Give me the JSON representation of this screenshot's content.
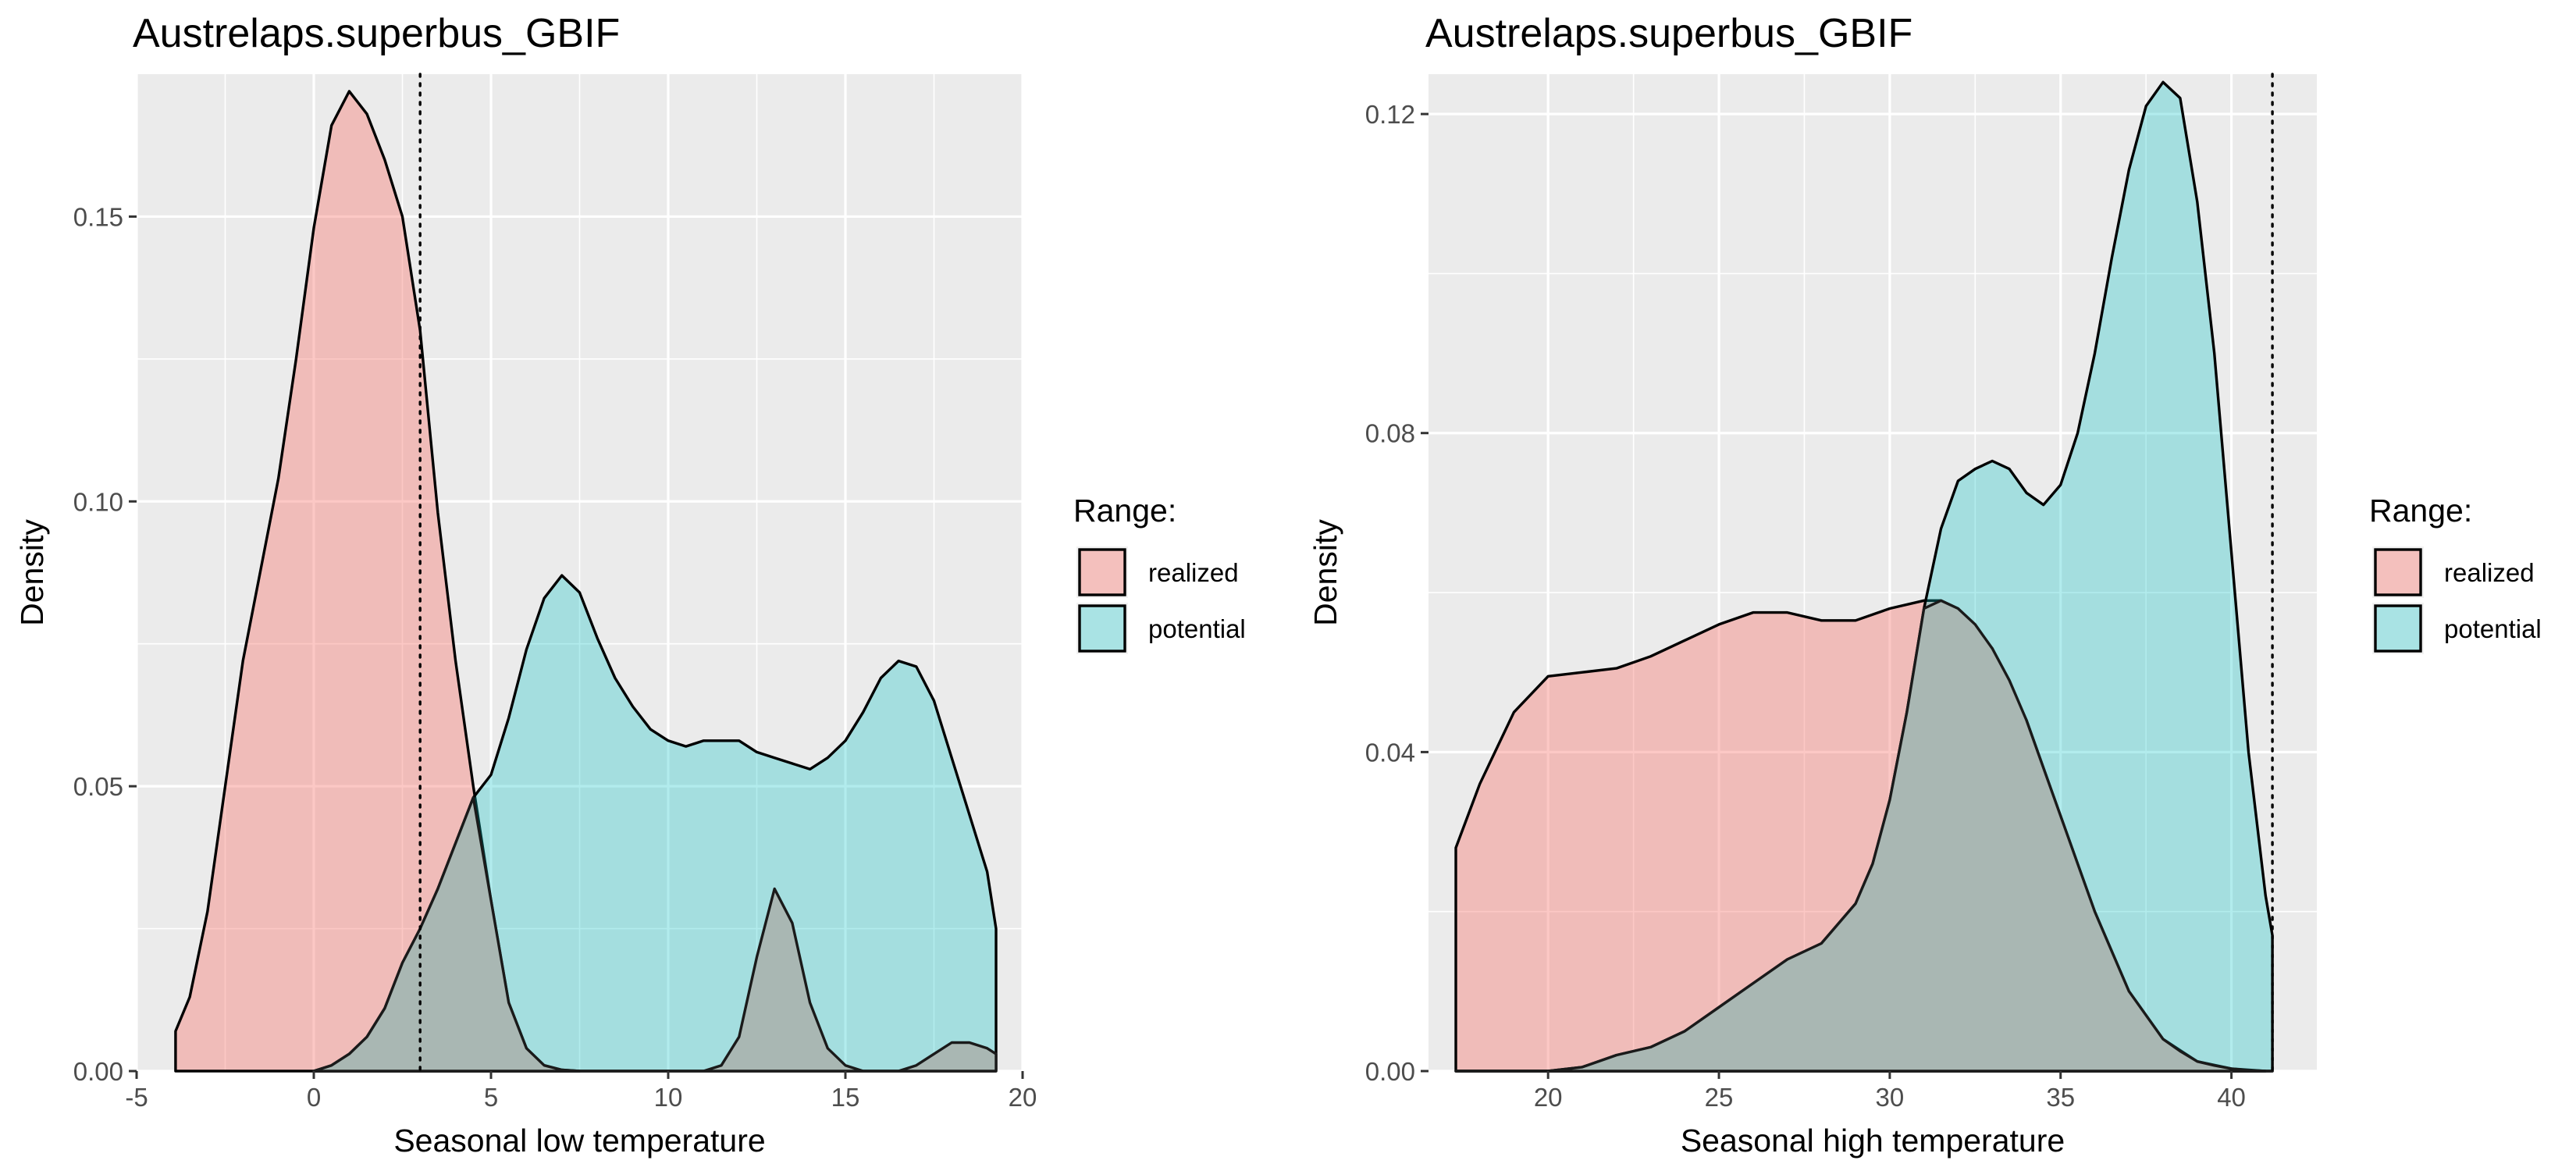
{
  "chart_data": [
    {
      "type": "area",
      "title": "Austrelaps.superbus_GBIF",
      "xlabel": "Seasonal low temperature",
      "ylabel": "Density",
      "xlim": [
        -5,
        20
      ],
      "ylim": [
        0,
        0.175
      ],
      "x_ticks": [
        -5,
        0,
        5,
        10,
        15,
        20
      ],
      "x_tick_labels": [
        "-5",
        "0",
        "5",
        "10",
        "15",
        "20"
      ],
      "y_ticks": [
        0,
        0.05,
        0.1,
        0.15
      ],
      "y_tick_labels": [
        "0.00",
        "0.05",
        "0.10",
        "0.15"
      ],
      "reference_line_x": 3.0,
      "grid": true,
      "legend": {
        "title": "Range:",
        "position": "right"
      },
      "series": [
        {
          "name": "realized",
          "color": "#F8766D",
          "x": [
            -3.9,
            -3.5,
            -3.0,
            -2.5,
            -2.0,
            -1.5,
            -1.0,
            -0.5,
            0.0,
            0.5,
            1.0,
            1.5,
            2.0,
            2.5,
            3.0,
            3.5,
            4.0,
            4.5,
            5.0,
            5.5,
            6.0,
            6.5,
            7.0,
            7.5
          ],
          "y": [
            0.007,
            0.013,
            0.028,
            0.05,
            0.072,
            0.088,
            0.104,
            0.125,
            0.148,
            0.166,
            0.172,
            0.168,
            0.16,
            0.15,
            0.13,
            0.098,
            0.072,
            0.05,
            0.03,
            0.012,
            0.004,
            0.001,
            0.0002,
            0.0
          ]
        },
        {
          "name": "potential",
          "color": "#00BFC4",
          "x": [
            0.0,
            0.5,
            1.0,
            1.5,
            2.0,
            2.5,
            3.0,
            3.5,
            4.0,
            4.5,
            5.0,
            5.5,
            6.0,
            6.5,
            7.0,
            7.5,
            8.0,
            8.5,
            9.0,
            9.5,
            10.0,
            10.5,
            11.0,
            11.5,
            12.0,
            12.5,
            13.0,
            13.5,
            14.0,
            14.5,
            15.0,
            15.5,
            16.0,
            16.5,
            17.0,
            17.5,
            18.0,
            18.5,
            19.0,
            19.25
          ],
          "y": [
            0.0,
            0.001,
            0.003,
            0.006,
            0.011,
            0.019,
            0.025,
            0.032,
            0.04,
            0.048,
            0.052,
            0.062,
            0.074,
            0.083,
            0.087,
            0.084,
            0.076,
            0.069,
            0.064,
            0.06,
            0.058,
            0.057,
            0.058,
            0.058,
            0.058,
            0.056,
            0.055,
            0.054,
            0.053,
            0.055,
            0.058,
            0.063,
            0.069,
            0.072,
            0.071,
            0.065,
            0.055,
            0.045,
            0.035,
            0.025
          ]
        },
        {
          "name": "overlap",
          "color": "#A9B7B3",
          "x": [
            0.0,
            0.5,
            1.0,
            1.5,
            2.0,
            2.5,
            3.0,
            3.5,
            4.0,
            4.5,
            5.0,
            5.5,
            6.0,
            6.5,
            7.0,
            7.5,
            8.0,
            8.5,
            9.0,
            9.5,
            10.0,
            10.5,
            11.0,
            11.5,
            12.0,
            12.5,
            13.0,
            13.5,
            14.0,
            14.5,
            15.0,
            15.5,
            16.0,
            16.5,
            17.0,
            17.5,
            18.0,
            18.5,
            19.0,
            19.25
          ],
          "y": [
            0.0,
            0.001,
            0.003,
            0.006,
            0.011,
            0.019,
            0.025,
            0.032,
            0.04,
            0.048,
            0.03,
            0.012,
            0.004,
            0.001,
            0.0002,
            0.0,
            0.0,
            0.0,
            0.0,
            0.0,
            0.0,
            0.0,
            0.0,
            0.001,
            0.006,
            0.02,
            0.032,
            0.026,
            0.012,
            0.004,
            0.001,
            0.0,
            0.0,
            0.0,
            0.001,
            0.003,
            0.005,
            0.005,
            0.004,
            0.003
          ]
        }
      ]
    },
    {
      "type": "area",
      "title": "Austrelaps.superbus_GBIF",
      "xlabel": "Seasonal high temperature",
      "ylabel": "Density",
      "xlim": [
        16.5,
        42.5
      ],
      "ylim": [
        0,
        0.125
      ],
      "x_ticks": [
        20,
        25,
        30,
        35,
        40
      ],
      "x_tick_labels": [
        "20",
        "25",
        "30",
        "35",
        "40"
      ],
      "y_ticks": [
        0,
        0.04,
        0.08,
        0.12
      ],
      "y_tick_labels": [
        "0.00",
        "0.04",
        "0.08",
        "0.12"
      ],
      "reference_line_x": 41.2,
      "grid": true,
      "legend": {
        "title": "Range:",
        "position": "right"
      },
      "series": [
        {
          "name": "realized",
          "color": "#F8766D",
          "x": [
            17.3,
            18.0,
            19.0,
            20.0,
            21.0,
            22.0,
            23.0,
            24.0,
            25.0,
            26.0,
            27.0,
            28.0,
            29.0,
            30.0,
            31.0,
            31.5,
            32.0,
            33.0,
            34.0,
            35.0,
            36.0,
            37.0,
            38.0,
            39.0,
            40.0,
            41.0
          ],
          "y": [
            0.028,
            0.036,
            0.045,
            0.0495,
            0.05,
            0.0505,
            0.052,
            0.054,
            0.056,
            0.0575,
            0.0575,
            0.0565,
            0.0565,
            0.058,
            0.059,
            0.059,
            0.058,
            0.053,
            0.044,
            0.032,
            0.02,
            0.01,
            0.004,
            0.0012,
            0.0003,
            0.0
          ]
        },
        {
          "name": "potential",
          "color": "#00BFC4",
          "x": [
            17.3,
            18.0,
            19.0,
            20.0,
            21.0,
            22.0,
            23.0,
            24.0,
            25.0,
            26.0,
            27.0,
            28.0,
            29.0,
            29.5,
            30.0,
            30.5,
            31.0,
            31.5,
            32.0,
            32.5,
            33.0,
            33.5,
            34.0,
            34.5,
            35.0,
            35.5,
            36.0,
            36.5,
            37.0,
            37.5,
            38.0,
            38.5,
            39.0,
            39.5,
            40.0,
            40.5,
            41.0,
            41.2
          ],
          "y": [
            0.0,
            0.0,
            0.0,
            0.0,
            0.0005,
            0.002,
            0.003,
            0.005,
            0.008,
            0.011,
            0.014,
            0.016,
            0.021,
            0.026,
            0.034,
            0.045,
            0.058,
            0.068,
            0.074,
            0.0755,
            0.0765,
            0.0755,
            0.0725,
            0.071,
            0.0735,
            0.08,
            0.09,
            0.102,
            0.113,
            0.121,
            0.124,
            0.122,
            0.109,
            0.09,
            0.065,
            0.04,
            0.022,
            0.017
          ]
        },
        {
          "name": "overlap",
          "color": "#A9B7B3",
          "x": [
            17.3,
            18.0,
            19.0,
            20.0,
            21.0,
            22.0,
            23.0,
            24.0,
            25.0,
            26.0,
            27.0,
            28.0,
            29.0,
            29.5,
            30.0,
            30.5,
            31.0,
            31.5,
            32.0,
            32.5,
            33.0,
            33.5,
            34.0,
            34.5,
            35.0,
            35.5,
            36.0,
            36.5,
            37.0,
            37.5,
            38.0,
            38.5,
            39.0,
            39.5,
            40.0,
            40.5,
            41.0,
            41.2
          ],
          "y": [
            0.0,
            0.0,
            0.0,
            0.0,
            0.0005,
            0.002,
            0.003,
            0.005,
            0.008,
            0.011,
            0.014,
            0.016,
            0.021,
            0.026,
            0.034,
            0.045,
            0.058,
            0.059,
            0.058,
            0.056,
            0.053,
            0.049,
            0.044,
            0.038,
            0.032,
            0.026,
            0.02,
            0.015,
            0.01,
            0.007,
            0.004,
            0.0025,
            0.0012,
            0.0007,
            0.0003,
            0.0001,
            0.0,
            0.0
          ]
        }
      ]
    }
  ]
}
